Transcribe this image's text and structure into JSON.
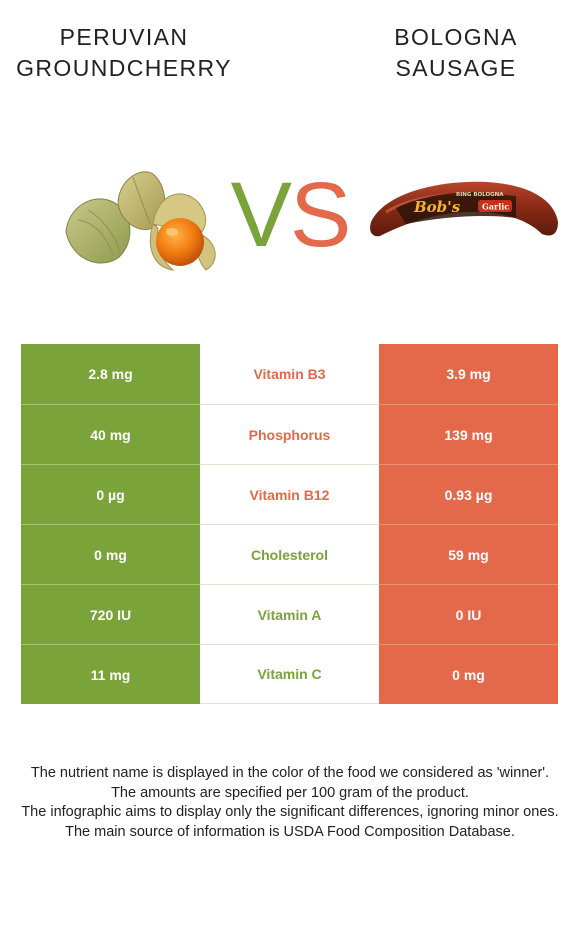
{
  "left_food": {
    "name_line1": "PERUVIAN",
    "name_line2": "GROUNDCHERRY"
  },
  "right_food": {
    "name_line1": "BOLOGNA",
    "name_line2": "SAUSAGE"
  },
  "vs": {
    "v": "V",
    "s": "S"
  },
  "colors": {
    "left": "#7aa33a",
    "right": "#e3694a"
  },
  "rows": [
    {
      "left": "2.8 mg",
      "nutrient": "Vitamin B3",
      "right": "3.9 mg",
      "winner": "right"
    },
    {
      "left": "40 mg",
      "nutrient": "Phosphorus",
      "right": "139 mg",
      "winner": "right"
    },
    {
      "left": "0 µg",
      "nutrient": "Vitamin B12",
      "right": "0.93 µg",
      "winner": "right"
    },
    {
      "left": "0 mg",
      "nutrient": "Cholesterol",
      "right": "59 mg",
      "winner": "left"
    },
    {
      "left": "720 IU",
      "nutrient": "Vitamin A",
      "right": "0 IU",
      "winner": "left"
    },
    {
      "left": "11 mg",
      "nutrient": "Vitamin C",
      "right": "0 mg",
      "winner": "left"
    }
  ],
  "sausage_label": {
    "brand": "Bob's",
    "product": "RING BOLOGNA",
    "flavor": "Garlic"
  },
  "footer": {
    "line1": "The nutrient name is displayed in the color of the food we considered as 'winner'.",
    "line2": "The amounts are specified per 100 gram of the product.",
    "line3": "The infographic aims to display only the significant differences, ignoring minor ones.",
    "line4": "The main source of information is USDA Food Composition Database."
  }
}
